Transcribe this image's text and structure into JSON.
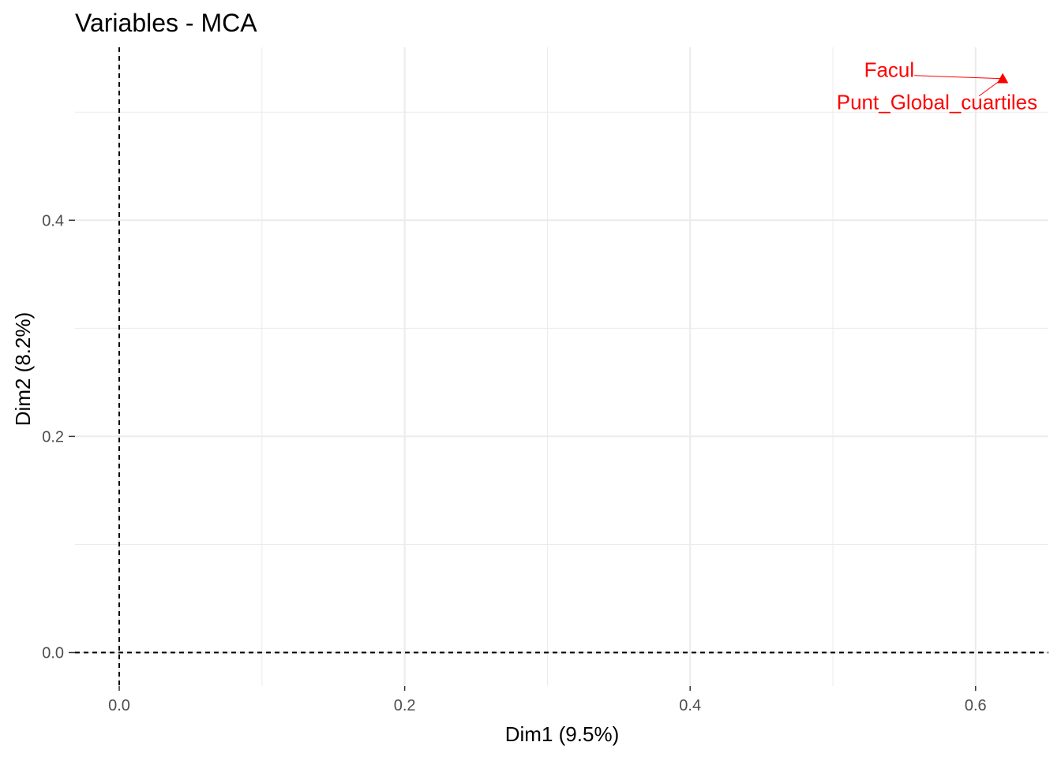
{
  "chart_data": {
    "type": "scatter",
    "title": "Variables - MCA",
    "xlabel": "Dim1 (9.5%)",
    "ylabel": "Dim2 (8.2%)",
    "xlim": [
      -0.031,
      0.651
    ],
    "ylim": [
      -0.031,
      0.56
    ],
    "x_ticks": [
      0.0,
      0.2,
      0.4,
      0.6
    ],
    "x_tick_labels": [
      "0.0",
      "0.2",
      "0.4",
      "0.6"
    ],
    "y_ticks": [
      0.0,
      0.2,
      0.4
    ],
    "y_tick_labels": [
      "0.0",
      "0.2",
      "0.4"
    ],
    "x_minor_ticks": [
      0.1,
      0.3,
      0.5
    ],
    "y_minor_ticks": [
      0.1,
      0.3,
      0.5
    ],
    "grid": true,
    "reference_lines": {
      "x": 0,
      "y": 0,
      "style": "dashed"
    },
    "points": [
      {
        "label": "Facul",
        "x": 0.619,
        "y": 0.531,
        "marker": "triangle",
        "color": "#ff0000"
      },
      {
        "label": "Punt_Global_cuartiles",
        "x": 0.619,
        "y": 0.531,
        "marker": "triangle",
        "color": "#ff0000"
      }
    ]
  },
  "colors": {
    "points": "#ff0000",
    "grid": "#ebebeb",
    "reference_line": "#000000"
  }
}
